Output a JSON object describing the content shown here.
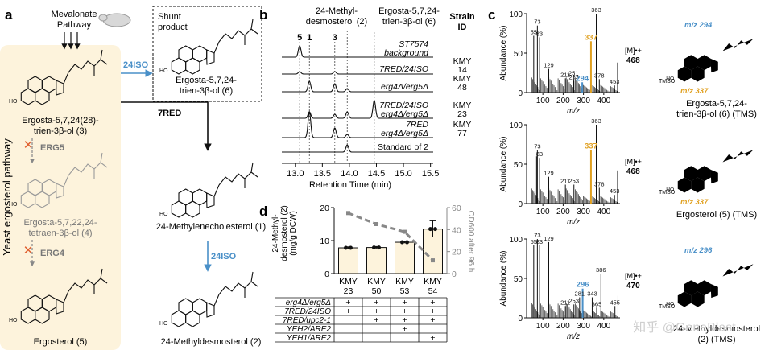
{
  "panels": {
    "a": "a",
    "b": "b",
    "c": "c",
    "d": "d"
  },
  "panel_a": {
    "mevalonate": [
      "Mevalonate",
      "Pathway"
    ],
    "pathway_label": "Yeast ergosterol pathway",
    "enzyme_24iso_top": "24ISO",
    "enzyme_7red": "7RED",
    "enzyme_24iso_right": "24ISO",
    "erg5": "ERG5",
    "erg4": "ERG4",
    "shunt": [
      "Shunt",
      "product"
    ],
    "c3": [
      "Ergosta-5,7,24(28)-",
      "trien-3β-ol (3)"
    ],
    "c6": [
      "Ergosta-5,7,24-",
      "trien-3β-ol (6)"
    ],
    "c4": [
      "Ergosta-5,7,22,24-",
      "tetraen-3β-ol (4)"
    ],
    "c5": "Ergosterol (5)",
    "c1": "24-Methylenecholesterol (1)",
    "c2": "24-Methyldesmosterol (2)"
  },
  "panel_b": {
    "header_2": [
      "24-Methyl-",
      "desmosterol (2)"
    ],
    "header_6": [
      "Ergosta-5,7,24-",
      "trien-3β-ol (6)"
    ],
    "strain_header": [
      "Strain",
      "ID"
    ],
    "peak_labels": [
      "5",
      "1",
      "3"
    ],
    "traces": [
      {
        "label1": "ST7574",
        "label2": "background",
        "strain": "",
        "y": 71
      },
      {
        "label1": "7RED/24ISO",
        "label2": "",
        "strain": "KMY 14",
        "y": 92
      },
      {
        "label1": "erg4Δ/erg5Δ",
        "label2": "",
        "strain": "KMY 48",
        "y": 114
      },
      {
        "label1": "7RED/24ISO",
        "label2": "erg4Δ/erg5Δ",
        "strain": "KMY 23",
        "y": 147
      },
      {
        "label1": "7RED",
        "label2": "erg4Δ/erg5Δ",
        "strain": "KMY 77",
        "y": 171
      },
      {
        "label1": "Standard of 2",
        "label2": "",
        "strain": "",
        "y": 189
      }
    ],
    "chart_data": {
      "type": "line",
      "title": "",
      "xlabel": "Retention Time (min)",
      "xlim": [
        12.75,
        15.55
      ],
      "x_ticks": [
        "13.0",
        "13.5",
        "14.0",
        "14.5",
        "15.0",
        "15.5"
      ],
      "peaks_rt": {
        "5": 13.08,
        "1": 13.26,
        "3": 13.73,
        "2": 13.96,
        "6": 14.46
      },
      "series": [
        {
          "name": "ST7574 background",
          "peaks": [
            [
              13.08,
              14
            ]
          ]
        },
        {
          "name": "KMY14 7RED/24ISO",
          "peaks": [
            [
              13.08,
              3
            ],
            [
              13.73,
              3
            ]
          ]
        },
        {
          "name": "KMY48 erg4Δ/erg5Δ",
          "peaks": [
            [
              13.26,
              13
            ],
            [
              13.73,
              10
            ],
            [
              13.96,
              4
            ]
          ]
        },
        {
          "name": "KMY23 7RED/24ISO erg4Δ/erg5Δ",
          "peaks": [
            [
              13.26,
              8
            ],
            [
              13.73,
              5
            ],
            [
              13.96,
              8
            ],
            [
              14.46,
              22
            ]
          ]
        },
        {
          "name": "KMY77 7RED erg4Δ/erg5Δ",
          "peaks": [
            [
              13.26,
              32
            ],
            [
              13.73,
              12
            ],
            [
              13.96,
              4
            ]
          ]
        },
        {
          "name": "Standard of 2",
          "peaks": [
            [
              13.96,
              9
            ]
          ]
        }
      ]
    }
  },
  "panel_d": {
    "ylabel": [
      "24-Methyl-",
      "desmosterol (2)",
      "(mg/g DCW)"
    ],
    "y2label": "OD600 after 96 h",
    "rows": [
      "erg4Δ/erg5Δ",
      "7RED/24ISO",
      "7RED/upc2-1",
      "YEH2/ARE2",
      "YEH1/ARE2"
    ],
    "marks": [
      [
        "+",
        "+",
        "+",
        "+"
      ],
      [
        "+",
        "+",
        "+",
        "+"
      ],
      [
        "",
        "+",
        "+",
        "+"
      ],
      [
        "",
        "",
        "+",
        ""
      ],
      [
        "",
        "",
        "",
        "+"
      ]
    ],
    "chart_data": {
      "type": "bar",
      "categories": [
        "KMY 23",
        "KMY 50",
        "KMY 53",
        "KMY 54"
      ],
      "values": [
        7.8,
        7.9,
        9.5,
        13.5
      ],
      "errors": [
        0.3,
        0.3,
        0.3,
        2.5
      ],
      "ylim": [
        0,
        20
      ],
      "y_ticks": [
        "0",
        "10",
        "20"
      ],
      "secondary": {
        "name": "OD600 after 96 h",
        "values": [
          55,
          45,
          38,
          12
        ],
        "ylim": [
          0,
          60
        ],
        "y_ticks": [
          "0",
          "20",
          "40",
          "60"
        ]
      },
      "xlabel": "",
      "ylabel": "24-Methyldesmosterol (2) (mg/g DCW)"
    }
  },
  "panel_c": {
    "ylabel": "Abundance (%)",
    "xlabel": "m/z",
    "x_ticks": [
      "100",
      "200",
      "300",
      "400"
    ],
    "y_ticks": [
      "0",
      "50",
      "100"
    ],
    "spectra": [
      {
        "name": "Ergosta-5,7,24-trien-3β-ol (6) (TMS)",
        "caption": [
          "Ergosta-5,7,24-",
          "trien-3β-ol (6) (TMS)"
        ],
        "M_label": "[M]•+",
        "M_value": "468",
        "frag1": "m/z 294",
        "frag2": "m/z 337",
        "tms": "TMSO",
        "peaks": [
          [
            55,
            72
          ],
          [
            73,
            85
          ],
          [
            83,
            70
          ],
          [
            129,
            30
          ],
          [
            211,
            18
          ],
          [
            251,
            20
          ],
          [
            253,
            15
          ],
          [
            294,
            13
          ],
          [
            337,
            65
          ],
          [
            363,
            100
          ],
          [
            378,
            17
          ],
          [
            453,
            9
          ],
          [
            468,
            38
          ]
        ],
        "labels": [
          [
            "55",
            55
          ],
          [
            "73",
            73
          ],
          [
            "83",
            83
          ],
          [
            "129",
            129
          ],
          [
            "211",
            211
          ],
          [
            "251",
            251
          ],
          [
            "253",
            253
          ],
          [
            "294",
            294
          ],
          [
            "337",
            337
          ],
          [
            "363",
            363
          ],
          [
            "378",
            378
          ],
          [
            "453",
            453
          ]
        ],
        "highlight": {
          "337": "#e0a020",
          "294": "#4a90c8"
        }
      },
      {
        "name": "Ergosterol (5) (TMS)",
        "caption": [
          "Ergosterol (5) (TMS)"
        ],
        "M_label": "[M]•+",
        "M_value": "468",
        "frag1": "",
        "frag2": "m/z 337",
        "tms": "TMSO",
        "peaks": [
          [
            69,
            60
          ],
          [
            73,
            68
          ],
          [
            83,
            58
          ],
          [
            129,
            34
          ],
          [
            211,
            24
          ],
          [
            253,
            24
          ],
          [
            337,
            68
          ],
          [
            363,
            100
          ],
          [
            378,
            20
          ],
          [
            453,
            11
          ],
          [
            468,
            42
          ]
        ],
        "labels": [
          [
            "73",
            73
          ],
          [
            "83",
            83
          ],
          [
            "129",
            129
          ],
          [
            "211",
            211
          ],
          [
            "253",
            253
          ],
          [
            "337",
            337
          ],
          [
            "363",
            363
          ],
          [
            "378",
            378
          ],
          [
            "453",
            453
          ]
        ],
        "highlight": {
          "337": "#e0a020"
        }
      },
      {
        "name": "24-Methyldesmosterol (2) (TMS)",
        "caption": [
          "24-Methyldesmosterol",
          "(2) (TMS)"
        ],
        "M_label": "[M]•+",
        "M_value": "470",
        "frag1": "m/z 296",
        "frag2": "",
        "tms": "TMSO",
        "peaks": [
          [
            55,
            92
          ],
          [
            73,
            100
          ],
          [
            83,
            92
          ],
          [
            129,
            96
          ],
          [
            211,
            15
          ],
          [
            253,
            17
          ],
          [
            281,
            26
          ],
          [
            296,
            37
          ],
          [
            343,
            26
          ],
          [
            365,
            13
          ],
          [
            386,
            56
          ],
          [
            455,
            15
          ],
          [
            470,
            28
          ]
        ],
        "labels": [
          [
            "55",
            55
          ],
          [
            "73",
            73
          ],
          [
            "83",
            83
          ],
          [
            "129",
            129
          ],
          [
            "211",
            211
          ],
          [
            "253",
            253
          ],
          [
            "281",
            281
          ],
          [
            "296",
            296
          ],
          [
            "343",
            343
          ],
          [
            "365",
            365
          ],
          [
            "386",
            386
          ],
          [
            "455",
            455
          ]
        ],
        "highlight": {
          "296": "#4a90c8"
        }
      }
    ]
  },
  "watermark": "知乎 @GeneBlast",
  "colors": {
    "blue": "#4a90c8",
    "orange": "#e0a020",
    "red": "#e06030",
    "bg_a": "#fdf3dc",
    "grey": "#8a8a8a"
  }
}
